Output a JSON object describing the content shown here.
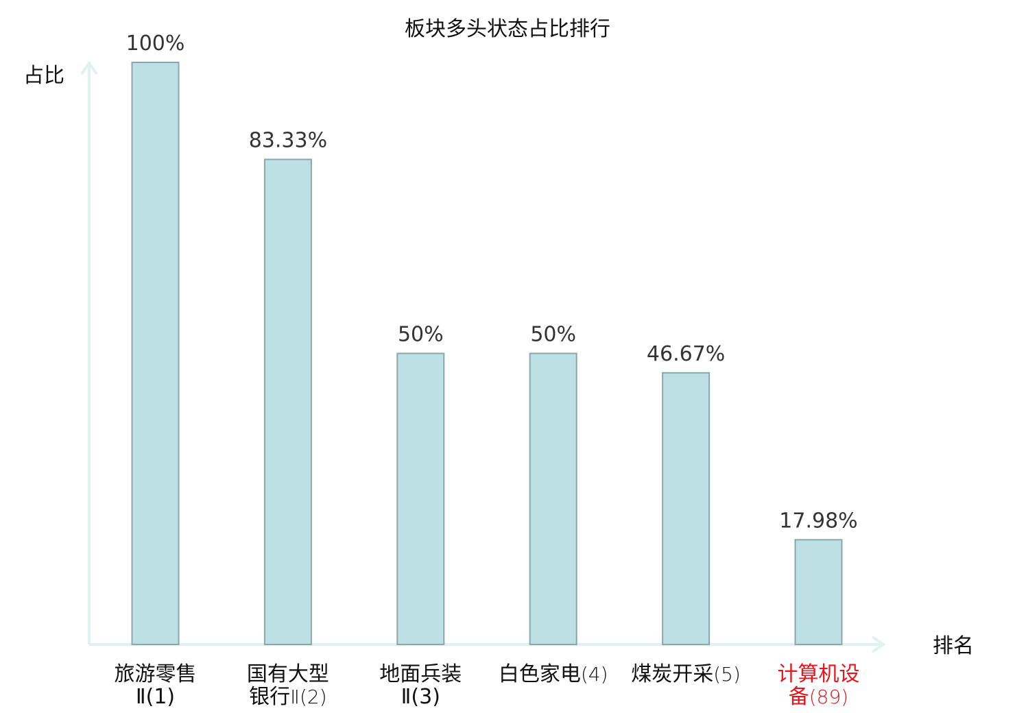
{
  "chart_data": {
    "type": "bar",
    "title": "板块多头状态占比排行",
    "ylabel": "占比",
    "xlabel": "排名",
    "ylim": [
      0,
      100
    ],
    "grid": false,
    "legend": "none",
    "categories": [
      [
        "旅游零售",
        "Ⅱ(1)"
      ],
      [
        "国有大型",
        "银行Ⅱ(2)"
      ],
      [
        "地面兵装",
        "Ⅱ(3)"
      ],
      [
        "白色家电(4)"
      ],
      [
        "煤炭开采(5)"
      ],
      [
        "计算机设",
        "备(89)"
      ]
    ],
    "values": [
      100,
      83.33,
      50,
      50,
      46.67,
      17.98
    ],
    "value_labels": [
      "100%",
      "83.33%",
      "50%",
      "50%",
      "46.67%",
      "17.98%"
    ],
    "highlight_index": 5,
    "colors": {
      "bar_fill": "#bce0e3",
      "bar_stroke": "#8aa6a8",
      "axis": "#dff2ef",
      "highlight_text": "#e8141c",
      "text": "#111111",
      "value_text": "#333333"
    }
  }
}
